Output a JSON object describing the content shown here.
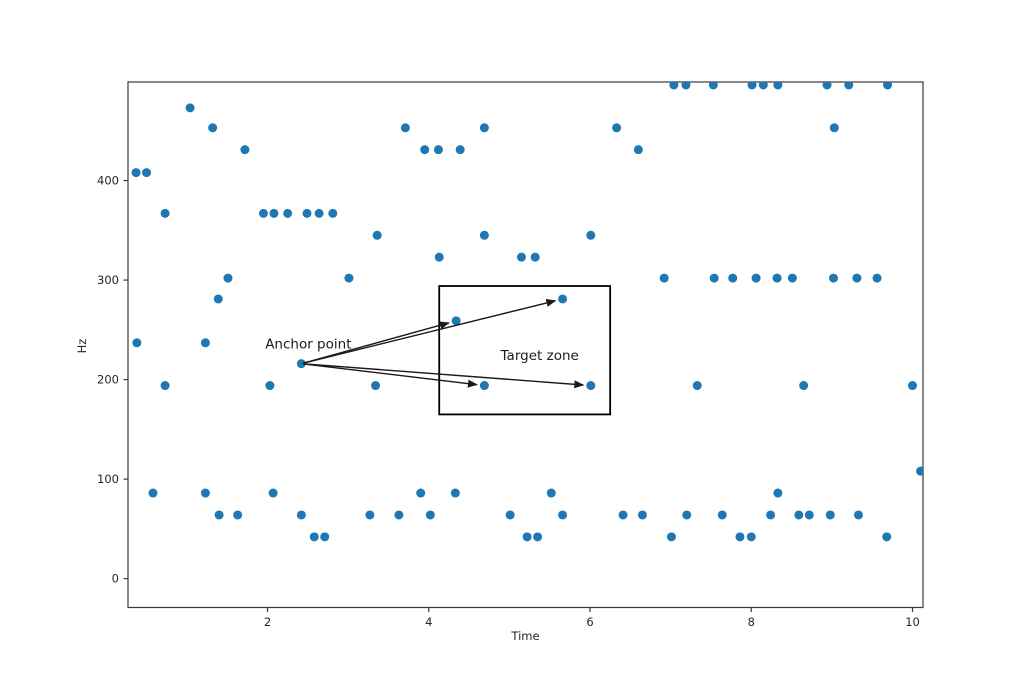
{
  "figure": {
    "background": "#ffffff",
    "dot_color": "#1f77b4",
    "spine_color": "#3a3a3a",
    "text_color": "#262626",
    "annotation_color": "#1a1a1a"
  },
  "chart_data": {
    "type": "scatter",
    "title": "",
    "xlabel": "Time",
    "ylabel": "Hz",
    "xlim": [
      0.27,
      10.13
    ],
    "ylim": [
      -29,
      499
    ],
    "x_ticks": [
      2,
      4,
      6,
      8,
      10
    ],
    "y_ticks": [
      0,
      100,
      200,
      300,
      400
    ],
    "grid": false,
    "legend": null,
    "points": [
      [
        7.04,
        496
      ],
      [
        7.19,
        496
      ],
      [
        7.53,
        496
      ],
      [
        8.01,
        496
      ],
      [
        8.15,
        496
      ],
      [
        8.33,
        496
      ],
      [
        8.94,
        496
      ],
      [
        9.21,
        496
      ],
      [
        9.69,
        496
      ],
      [
        1.04,
        473
      ],
      [
        1.32,
        453
      ],
      [
        3.71,
        453
      ],
      [
        4.69,
        453
      ],
      [
        6.33,
        453
      ],
      [
        9.03,
        453
      ],
      [
        1.72,
        431
      ],
      [
        3.95,
        431
      ],
      [
        4.12,
        431
      ],
      [
        4.39,
        431
      ],
      [
        6.6,
        431
      ],
      [
        0.37,
        408
      ],
      [
        0.5,
        408
      ],
      [
        0.73,
        367
      ],
      [
        1.95,
        367
      ],
      [
        2.08,
        367
      ],
      [
        2.25,
        367
      ],
      [
        2.49,
        367
      ],
      [
        2.64,
        367
      ],
      [
        2.81,
        367
      ],
      [
        3.36,
        345
      ],
      [
        4.69,
        345
      ],
      [
        6.01,
        345
      ],
      [
        4.13,
        323
      ],
      [
        5.15,
        323
      ],
      [
        5.32,
        323
      ],
      [
        1.51,
        302
      ],
      [
        3.01,
        302
      ],
      [
        6.92,
        302
      ],
      [
        7.54,
        302
      ],
      [
        7.77,
        302
      ],
      [
        8.06,
        302
      ],
      [
        8.32,
        302
      ],
      [
        8.51,
        302
      ],
      [
        9.02,
        302
      ],
      [
        9.31,
        302
      ],
      [
        9.56,
        302
      ],
      [
        1.39,
        281
      ],
      [
        5.66,
        281
      ],
      [
        4.34,
        259
      ],
      [
        0.38,
        237
      ],
      [
        1.23,
        237
      ],
      [
        2.42,
        216
      ],
      [
        0.73,
        194
      ],
      [
        2.03,
        194
      ],
      [
        3.34,
        194
      ],
      [
        4.69,
        194
      ],
      [
        6.01,
        194
      ],
      [
        7.33,
        194
      ],
      [
        8.65,
        194
      ],
      [
        10.0,
        194
      ],
      [
        10.1,
        108
      ],
      [
        0.58,
        86
      ],
      [
        1.23,
        86
      ],
      [
        2.07,
        86
      ],
      [
        3.9,
        86
      ],
      [
        4.33,
        86
      ],
      [
        5.52,
        86
      ],
      [
        8.33,
        86
      ],
      [
        1.4,
        64
      ],
      [
        1.63,
        64
      ],
      [
        2.42,
        64
      ],
      [
        3.27,
        64
      ],
      [
        3.63,
        64
      ],
      [
        4.02,
        64
      ],
      [
        5.01,
        64
      ],
      [
        5.66,
        64
      ],
      [
        6.41,
        64
      ],
      [
        6.65,
        64
      ],
      [
        7.2,
        64
      ],
      [
        7.64,
        64
      ],
      [
        8.24,
        64
      ],
      [
        8.59,
        64
      ],
      [
        8.72,
        64
      ],
      [
        8.98,
        64
      ],
      [
        9.33,
        64
      ],
      [
        2.58,
        42
      ],
      [
        2.71,
        42
      ],
      [
        5.22,
        42
      ],
      [
        5.35,
        42
      ],
      [
        7.01,
        42
      ],
      [
        7.86,
        42
      ],
      [
        8.0,
        42
      ],
      [
        9.68,
        42
      ]
    ],
    "anchor_point": {
      "label": "Anchor point",
      "t": 2.42,
      "hz": 216
    },
    "target_zone": {
      "label": "Target zone",
      "t_min": 4.13,
      "t_max": 6.25,
      "hz_min": 165,
      "hz_max": 294
    },
    "arrows": [
      {
        "to_t": 4.34,
        "to_hz": 259
      },
      {
        "to_t": 5.66,
        "to_hz": 281
      },
      {
        "to_t": 4.69,
        "to_hz": 194
      },
      {
        "to_t": 6.01,
        "to_hz": 194
      }
    ]
  }
}
